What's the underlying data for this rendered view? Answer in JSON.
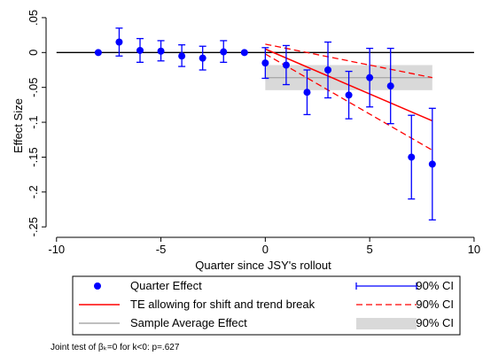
{
  "chart_data": {
    "type": "scatter",
    "xlabel": "Quarter since JSY's rollout",
    "ylabel": "Effect Size",
    "xlim": [
      -10.5,
      10.3
    ],
    "ylim": [
      -0.265,
      0.055
    ],
    "x_ticks": [
      -10,
      -5,
      0,
      5,
      10
    ],
    "x_tick_labels": [
      "-10",
      "-5",
      "0",
      "5",
      "10"
    ],
    "y_ticks": [
      0.05,
      0,
      -0.05,
      -0.1,
      -0.15,
      -0.2,
      -0.25
    ],
    "y_tick_labels": [
      ".05",
      "0",
      "-.05",
      "-.1",
      "-.15",
      "-.2",
      "-.25"
    ],
    "zero_line": 0,
    "grid": false,
    "series": [
      {
        "name": "Quarter Effect",
        "color": "#0000ff",
        "x": [
          -8,
          -7,
          -6,
          -5,
          -4,
          -3,
          -2,
          -1,
          0,
          1,
          2,
          3,
          4,
          5,
          6,
          7,
          8
        ],
        "y": [
          0.0,
          0.015,
          0.003,
          0.002,
          -0.005,
          -0.008,
          0.001,
          0.0,
          -0.015,
          -0.018,
          -0.057,
          -0.025,
          -0.061,
          -0.036,
          -0.048,
          -0.15,
          -0.16
        ],
        "ci_low": [
          null,
          -0.005,
          -0.014,
          -0.012,
          -0.02,
          -0.025,
          -0.014,
          null,
          -0.037,
          -0.046,
          -0.089,
          -0.065,
          -0.095,
          -0.078,
          -0.102,
          -0.21,
          -0.24
        ],
        "ci_high": [
          null,
          0.035,
          0.02,
          0.017,
          0.011,
          0.009,
          0.017,
          null,
          0.007,
          0.01,
          -0.025,
          0.015,
          -0.027,
          0.006,
          0.006,
          -0.09,
          -0.08
        ]
      },
      {
        "name": "TE allowing for shift and trend break",
        "color": "#ff0000",
        "x": [
          0,
          8
        ],
        "y": [
          0.005,
          -0.098
        ],
        "ci_upper": [
          0.012,
          -0.036
        ],
        "ci_lower": [
          -0.002,
          -0.14
        ]
      },
      {
        "name": "Sample Average Effect",
        "color": "#aaaaaa",
        "x": [
          0,
          8
        ],
        "y": [
          -0.036,
          -0.036
        ],
        "ci_low": -0.054,
        "ci_high": -0.018
      }
    ],
    "legend": {
      "placement": "bottom",
      "entries": [
        {
          "label": "Quarter Effect",
          "symbol": "dot"
        },
        {
          "label": "90% CI",
          "symbol": "capped-bar"
        },
        {
          "label": "TE allowing for shift and trend break",
          "symbol": "solid-red"
        },
        {
          "label": "90% CI",
          "symbol": "dashed-red"
        },
        {
          "label": "Sample Average Effect",
          "symbol": "solid-gray"
        },
        {
          "label": "90% CI",
          "symbol": "gray-box"
        }
      ]
    },
    "note": "Joint test of βₖ=0 for k<0: p=.627"
  }
}
